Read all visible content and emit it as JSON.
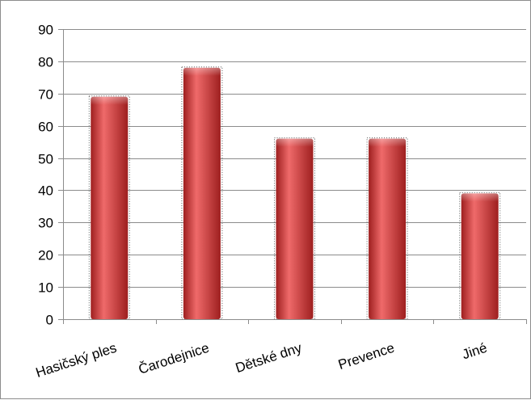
{
  "chart_data": {
    "type": "bar",
    "title": "",
    "xlabel": "",
    "ylabel": "",
    "categories": [
      "Hasičský ples",
      "Čarodejnice",
      "Dětské dny",
      "Prevence",
      "Jiné"
    ],
    "values": [
      69,
      78,
      56,
      56,
      39
    ],
    "ylim": [
      0,
      90
    ],
    "yticks": [
      0,
      10,
      20,
      30,
      40,
      50,
      60,
      70,
      80,
      90
    ],
    "grid": true,
    "legend": "none",
    "bar_color": "#d63a3a",
    "bar_color_light": "#ef6a6a",
    "bar_color_dark": "#9e1f1f"
  }
}
